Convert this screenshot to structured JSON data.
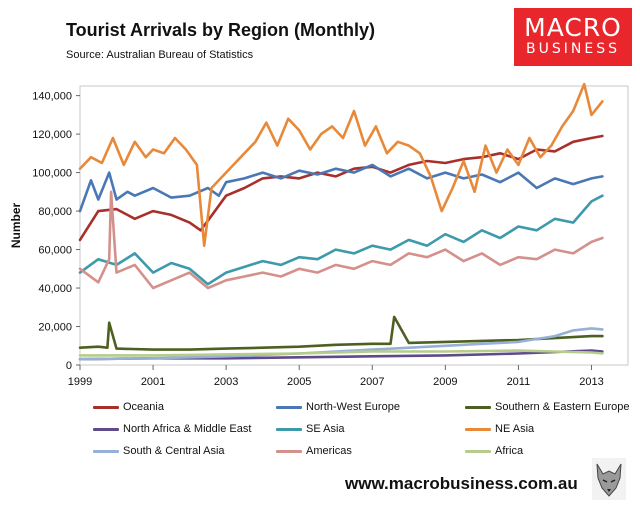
{
  "title": "Tourist Arrivals by Region (Monthly)",
  "subtitle": "Source: Australian Bureau of Statistics",
  "logo": {
    "line1": "MACRO",
    "line2": "BUSINESS"
  },
  "website": "www.macrobusiness.com.au",
  "mascot_icon": "fox-icon",
  "chart_data": {
    "type": "line",
    "title": "Tourist Arrivals by Region (Monthly)",
    "xlabel": "",
    "ylabel": "Number",
    "xlim": [
      1999,
      2014
    ],
    "ylim": [
      0,
      145000
    ],
    "xticks": [
      1999,
      2001,
      2003,
      2005,
      2007,
      2009,
      2011,
      2013
    ],
    "xtick_labels": [
      "1999",
      "2001",
      "2003",
      "2005",
      "2007",
      "2009",
      "2011",
      "2013"
    ],
    "yticks": [
      0,
      20000,
      40000,
      60000,
      80000,
      100000,
      120000,
      140000
    ],
    "ytick_labels": [
      "0",
      "20,000",
      "40,000",
      "60,000",
      "80,000",
      "100,000",
      "120,000",
      "140,000"
    ],
    "grid": false,
    "legend_position": "bottom",
    "series": [
      {
        "name": "Oceania",
        "color": "#a8302b",
        "x": [
          1999.0,
          1999.5,
          2000.0,
          2000.5,
          2001.0,
          2001.5,
          2002.0,
          2002.3,
          2002.5,
          2003.0,
          2003.5,
          2004.0,
          2004.5,
          2005.0,
          2005.5,
          2006.0,
          2006.5,
          2007.0,
          2007.5,
          2008.0,
          2008.5,
          2009.0,
          2009.5,
          2010.0,
          2010.5,
          2011.0,
          2011.5,
          2012.0,
          2012.5,
          2013.0,
          2013.3
        ],
        "values": [
          65000,
          80000,
          81000,
          76000,
          80000,
          78000,
          74000,
          70000,
          75000,
          88000,
          92000,
          97000,
          98000,
          97000,
          100000,
          98000,
          102000,
          103000,
          100000,
          104000,
          106000,
          105000,
          107000,
          108000,
          110000,
          107000,
          112000,
          111000,
          116000,
          118000,
          119000
        ]
      },
      {
        "name": "North-West Europe",
        "color": "#4a78b5",
        "x": [
          1999.0,
          1999.3,
          1999.5,
          1999.8,
          2000.0,
          2000.3,
          2000.5,
          2001.0,
          2001.5,
          2002.0,
          2002.5,
          2002.8,
          2003.0,
          2003.5,
          2004.0,
          2004.5,
          2005.0,
          2005.5,
          2006.0,
          2006.5,
          2007.0,
          2007.5,
          2008.0,
          2008.5,
          2009.0,
          2009.5,
          2010.0,
          2010.5,
          2011.0,
          2011.5,
          2012.0,
          2012.5,
          2013.0,
          2013.3
        ],
        "values": [
          80000,
          96000,
          86000,
          100000,
          86000,
          90000,
          88000,
          92000,
          87000,
          88000,
          92000,
          88000,
          95000,
          97000,
          100000,
          97000,
          101000,
          99000,
          102000,
          100000,
          104000,
          98000,
          102000,
          97000,
          100000,
          97000,
          99000,
          95000,
          100000,
          92000,
          97000,
          94000,
          97000,
          98000
        ]
      },
      {
        "name": "Southern & Eastern Europe",
        "color": "#4e6021",
        "x": [
          1999.0,
          1999.5,
          1999.75,
          1999.8,
          2000.0,
          2001.0,
          2002.0,
          2003.0,
          2004.0,
          2005.0,
          2006.0,
          2007.0,
          2007.5,
          2007.6,
          2008.0,
          2009.0,
          2010.0,
          2011.0,
          2012.0,
          2013.0,
          2013.3
        ],
        "values": [
          9000,
          9500,
          9000,
          22000,
          8500,
          8000,
          8000,
          8500,
          9000,
          9500,
          10500,
          11000,
          11000,
          25000,
          11500,
          12000,
          12500,
          13000,
          14000,
          15000,
          15000
        ]
      },
      {
        "name": "North Africa & Middle East",
        "color": "#5f4a8b",
        "x": [
          1999.0,
          2001.0,
          2003.0,
          2005.0,
          2007.0,
          2009.0,
          2011.0,
          2013.0,
          2013.3
        ],
        "values": [
          3000,
          3500,
          3500,
          4000,
          4500,
          5000,
          6000,
          7500,
          7000
        ]
      },
      {
        "name": "SE Asia",
        "color": "#3d9aaa",
        "x": [
          1999.0,
          1999.5,
          2000.0,
          2000.5,
          2001.0,
          2001.5,
          2002.0,
          2002.5,
          2003.0,
          2003.5,
          2004.0,
          2004.5,
          2005.0,
          2005.5,
          2006.0,
          2006.5,
          2007.0,
          2007.5,
          2008.0,
          2008.5,
          2009.0,
          2009.5,
          2010.0,
          2010.5,
          2011.0,
          2011.5,
          2012.0,
          2012.5,
          2013.0,
          2013.3
        ],
        "values": [
          48000,
          55000,
          52000,
          58000,
          48000,
          53000,
          50000,
          42000,
          48000,
          51000,
          54000,
          52000,
          56000,
          55000,
          60000,
          58000,
          62000,
          60000,
          65000,
          62000,
          68000,
          64000,
          70000,
          66000,
          72000,
          70000,
          76000,
          74000,
          85000,
          88000
        ]
      },
      {
        "name": "NE Asia",
        "color": "#e8893a",
        "x": [
          1999.0,
          1999.3,
          1999.6,
          1999.9,
          2000.2,
          2000.5,
          2000.8,
          2001.0,
          2001.3,
          2001.6,
          2001.9,
          2002.2,
          2002.4,
          2002.6,
          2002.9,
          2003.2,
          2003.5,
          2003.8,
          2004.1,
          2004.4,
          2004.7,
          2005.0,
          2005.3,
          2005.6,
          2005.9,
          2006.2,
          2006.5,
          2006.8,
          2007.1,
          2007.4,
          2007.7,
          2008.0,
          2008.3,
          2008.6,
          2008.9,
          2009.2,
          2009.5,
          2009.8,
          2010.1,
          2010.4,
          2010.7,
          2011.0,
          2011.3,
          2011.6,
          2011.9,
          2012.2,
          2012.5,
          2012.8,
          2013.0,
          2013.3
        ],
        "values": [
          102000,
          108000,
          105000,
          118000,
          104000,
          116000,
          108000,
          112000,
          110000,
          118000,
          112000,
          104000,
          62000,
          92000,
          98000,
          104000,
          110000,
          116000,
          126000,
          114000,
          128000,
          122000,
          112000,
          120000,
          124000,
          118000,
          132000,
          114000,
          124000,
          110000,
          116000,
          114000,
          110000,
          98000,
          80000,
          92000,
          106000,
          90000,
          114000,
          100000,
          112000,
          104000,
          118000,
          108000,
          114000,
          124000,
          132000,
          146000,
          130000,
          137000
        ]
      },
      {
        "name": "South & Central Asia",
        "color": "#96b0d8",
        "x": [
          1999.0,
          2001.0,
          2003.0,
          2005.0,
          2007.0,
          2009.0,
          2010.0,
          2011.0,
          2012.0,
          2012.5,
          2013.0,
          2013.3
        ],
        "values": [
          3000,
          3500,
          4500,
          6000,
          8000,
          10000,
          11000,
          12000,
          15000,
          18000,
          19000,
          18500
        ]
      },
      {
        "name": "Americas",
        "color": "#d4918c",
        "x": [
          1999.0,
          1999.5,
          1999.8,
          1999.85,
          2000.0,
          2000.5,
          2001.0,
          2001.5,
          2002.0,
          2002.5,
          2003.0,
          2003.5,
          2004.0,
          2004.5,
          2005.0,
          2005.5,
          2006.0,
          2006.5,
          2007.0,
          2007.5,
          2008.0,
          2008.5,
          2009.0,
          2009.5,
          2010.0,
          2010.5,
          2011.0,
          2011.5,
          2012.0,
          2012.5,
          2013.0,
          2013.3
        ],
        "values": [
          50000,
          43000,
          55000,
          90000,
          48000,
          52000,
          40000,
          44000,
          48000,
          40000,
          44000,
          46000,
          48000,
          46000,
          50000,
          48000,
          52000,
          50000,
          54000,
          52000,
          58000,
          56000,
          60000,
          54000,
          58000,
          52000,
          56000,
          55000,
          60000,
          58000,
          64000,
          66000
        ]
      },
      {
        "name": "Africa",
        "color": "#b5cc8a",
        "x": [
          1999.0,
          2001.0,
          2003.0,
          2005.0,
          2007.0,
          2009.0,
          2011.0,
          2013.0,
          2013.3
        ],
        "values": [
          5000,
          5000,
          5500,
          6000,
          7000,
          7000,
          7500,
          6500,
          6000
        ]
      }
    ]
  }
}
